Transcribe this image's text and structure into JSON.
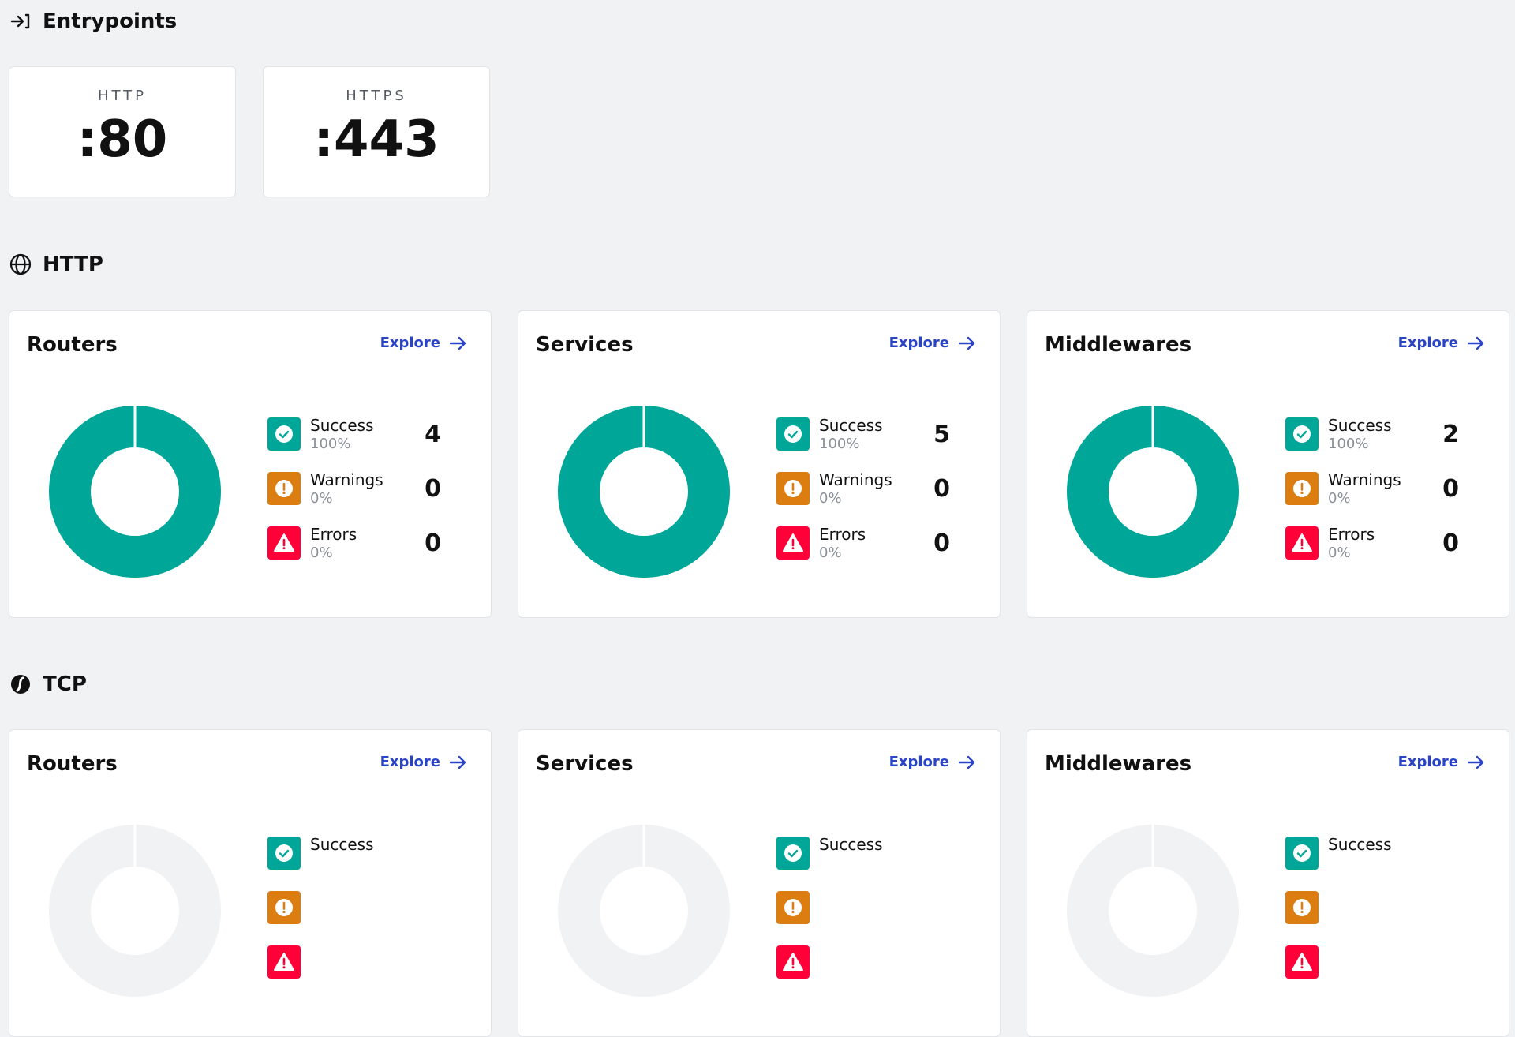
{
  "entrypoints": {
    "title": "Entrypoints",
    "items": [
      {
        "name": "HTTP",
        "port": ":80"
      },
      {
        "name": "HTTPS",
        "port": ":443"
      }
    ]
  },
  "colors": {
    "success": "#00a697",
    "warning": "#db7d11",
    "error": "#ff0039",
    "accent": "#2a44c7",
    "empty": "#f1f2f4"
  },
  "http": {
    "title": "HTTP",
    "cards": [
      {
        "title": "Routers",
        "explore": "Explore",
        "success": {
          "label": "Success",
          "pct": "100%",
          "count": "4"
        },
        "warnings": {
          "label": "Warnings",
          "pct": "0%",
          "count": "0"
        },
        "errors": {
          "label": "Errors",
          "pct": "0%",
          "count": "0"
        }
      },
      {
        "title": "Services",
        "explore": "Explore",
        "success": {
          "label": "Success",
          "pct": "100%",
          "count": "5"
        },
        "warnings": {
          "label": "Warnings",
          "pct": "0%",
          "count": "0"
        },
        "errors": {
          "label": "Errors",
          "pct": "0%",
          "count": "0"
        }
      },
      {
        "title": "Middlewares",
        "explore": "Explore",
        "success": {
          "label": "Success",
          "pct": "100%",
          "count": "2"
        },
        "warnings": {
          "label": "Warnings",
          "pct": "0%",
          "count": "0"
        },
        "errors": {
          "label": "Errors",
          "pct": "0%",
          "count": "0"
        }
      }
    ]
  },
  "tcp": {
    "title": "TCP",
    "cards": [
      {
        "title": "Routers",
        "explore": "Explore",
        "success": {
          "label": "Success"
        }
      },
      {
        "title": "Services",
        "explore": "Explore",
        "success": {
          "label": "Success"
        }
      },
      {
        "title": "Middlewares",
        "explore": "Explore",
        "success": {
          "label": "Success"
        }
      }
    ]
  }
}
